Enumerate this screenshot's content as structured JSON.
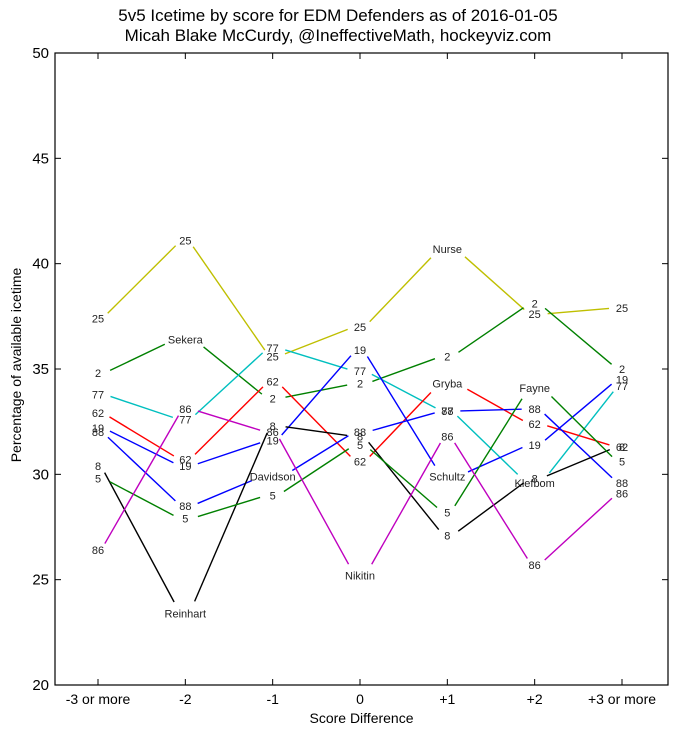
{
  "chart_data": {
    "type": "line",
    "title": "5v5 Icetime by score for EDM Defenders as of 2016-01-05",
    "subtitle": "Micah Blake McCurdy, @IneffectiveMath, hockeyviz.com",
    "xlabel": "Score Difference",
    "ylabel": "Percentage of available icetime",
    "categories": [
      "-3 or more",
      "-2",
      "-1",
      "0",
      "+1",
      "+2",
      "+3 or more"
    ],
    "ylim": [
      20,
      50
    ],
    "yticks": [
      20,
      25,
      30,
      35,
      40,
      45,
      50
    ],
    "grid": false,
    "legend": "none (series labeled inline by jersey number; one point per series labeled with player name)",
    "series": [
      {
        "name": "Nurse",
        "number": "25",
        "color": "#bfbf00",
        "name_at": 4,
        "values": [
          37.4,
          41.1,
          35.6,
          37.0,
          40.7,
          37.6,
          37.9
        ]
      },
      {
        "name": "Sekera",
        "number": "2",
        "color": "#008000",
        "name_at": 1,
        "values": [
          34.8,
          36.4,
          33.6,
          34.3,
          35.6,
          38.1,
          35.0
        ]
      },
      {
        "name": "Klefbom",
        "number": "77",
        "color": "#00bfbf",
        "name_at": 5,
        "values": [
          33.8,
          32.6,
          36.0,
          34.9,
          33.0,
          29.6,
          34.2
        ]
      },
      {
        "name": "Gryba",
        "number": "62",
        "color": "#ff0000",
        "name_at": 4,
        "values": [
          32.9,
          30.7,
          34.4,
          30.6,
          34.3,
          32.4,
          31.3
        ]
      },
      {
        "name": "Schultz",
        "number": "19",
        "color": "#0000ff",
        "name_at": 4,
        "values": [
          32.2,
          30.4,
          31.6,
          35.9,
          29.9,
          31.4,
          34.5
        ]
      },
      {
        "name": "Davidson",
        "number": "88",
        "color": "#0000ff",
        "name_at": 2,
        "values": [
          32.0,
          28.5,
          29.9,
          32.0,
          33.0,
          33.1,
          29.6
        ]
      },
      {
        "name": "Reinhart",
        "number": "8",
        "color": "#000000",
        "name_at": 1,
        "values": [
          30.4,
          23.4,
          32.3,
          31.8,
          27.1,
          29.8,
          31.3
        ]
      },
      {
        "name": "Fayne",
        "number": "5",
        "color": "#008000",
        "name_at": 5,
        "values": [
          29.8,
          27.9,
          29.0,
          31.4,
          28.2,
          34.1,
          30.6
        ]
      },
      {
        "name": "Nikitin",
        "number": "86",
        "color": "#bf00bf",
        "name_at": 3,
        "values": [
          26.4,
          33.1,
          32.0,
          25.2,
          31.8,
          25.7,
          29.1
        ]
      }
    ]
  }
}
